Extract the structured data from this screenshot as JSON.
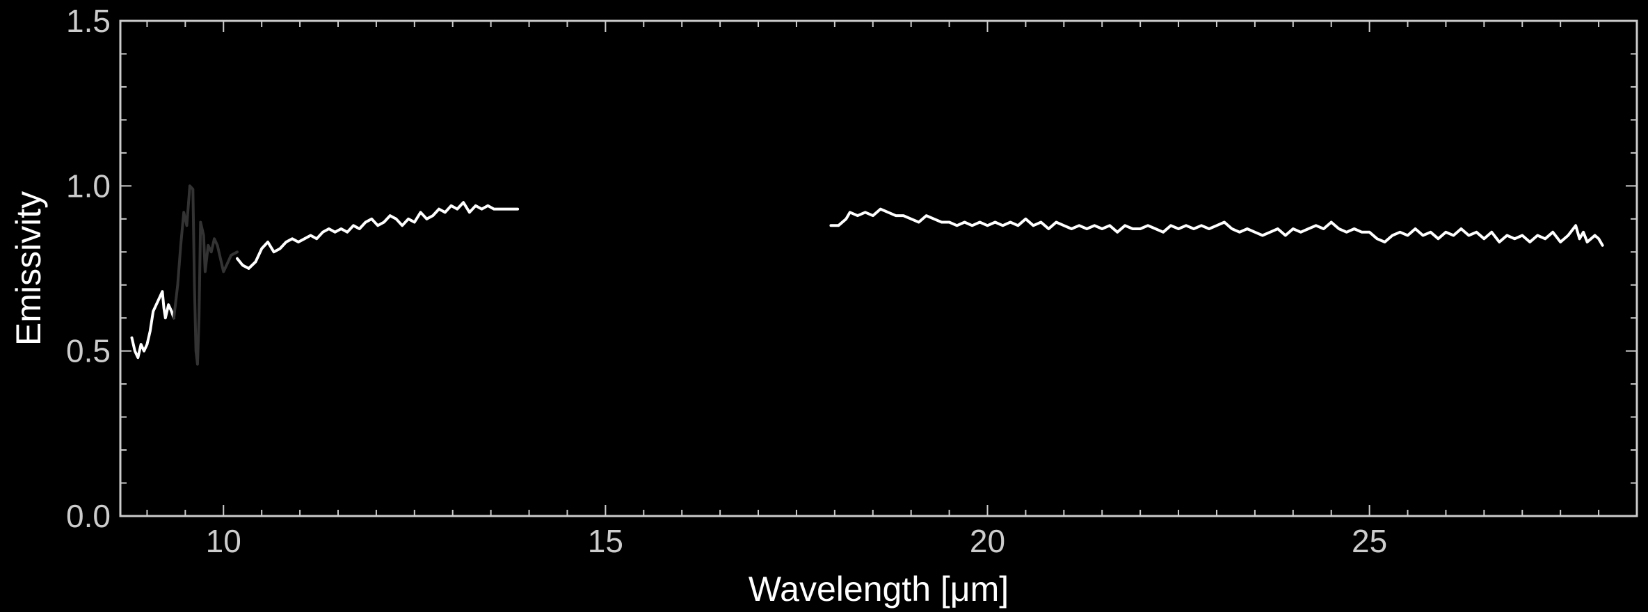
{
  "chart_data": {
    "type": "line",
    "xlabel": "Wavelength [μm]",
    "ylabel": "Emissivity",
    "xlim": [
      8.65,
      28.5
    ],
    "ylim": [
      0.0,
      1.5
    ],
    "x_ticks": [
      10,
      15,
      20,
      25
    ],
    "y_ticks": [
      0.0,
      0.5,
      1.0,
      1.5
    ],
    "x_tick_labels": [
      "10",
      "15",
      "20",
      "25"
    ],
    "y_tick_labels": [
      "0.0",
      "0.5",
      "1.0",
      "1.5"
    ],
    "x_minor_step": 0.5,
    "y_minor_step": 0.1,
    "grid": false,
    "colors": {
      "background": "#000000",
      "axes": "#cccccc",
      "primary": "#ffffff",
      "secondary": "#333333"
    },
    "series": [
      {
        "color": "#ffffff",
        "points": [
          [
            8.8,
            0.54
          ],
          [
            8.84,
            0.5
          ],
          [
            8.88,
            0.48
          ],
          [
            8.92,
            0.52
          ],
          [
            8.96,
            0.5
          ],
          [
            9.0,
            0.52
          ],
          [
            9.04,
            0.56
          ],
          [
            9.08,
            0.62
          ],
          [
            9.12,
            0.64
          ],
          [
            9.16,
            0.66
          ],
          [
            9.2,
            0.68
          ],
          [
            9.22,
            0.63
          ],
          [
            9.24,
            0.6
          ],
          [
            9.28,
            0.64
          ],
          [
            9.32,
            0.62
          ],
          [
            9.35,
            0.6
          ]
        ]
      },
      {
        "color": "#333333",
        "points": [
          [
            9.35,
            0.6
          ],
          [
            9.4,
            0.7
          ],
          [
            9.44,
            0.82
          ],
          [
            9.48,
            0.92
          ],
          [
            9.52,
            0.88
          ],
          [
            9.56,
            1.0
          ],
          [
            9.6,
            0.99
          ],
          [
            9.62,
            0.7
          ],
          [
            9.64,
            0.5
          ],
          [
            9.66,
            0.46
          ],
          [
            9.68,
            0.6
          ],
          [
            9.7,
            0.89
          ],
          [
            9.74,
            0.85
          ],
          [
            9.76,
            0.74
          ],
          [
            9.8,
            0.82
          ],
          [
            9.84,
            0.8
          ],
          [
            9.88,
            0.84
          ],
          [
            9.92,
            0.82
          ],
          [
            9.96,
            0.78
          ],
          [
            10.0,
            0.74
          ],
          [
            10.04,
            0.76
          ],
          [
            10.1,
            0.79
          ],
          [
            10.18,
            0.8
          ]
        ]
      },
      {
        "color": "#ffffff",
        "points": [
          [
            10.18,
            0.78
          ],
          [
            10.25,
            0.76
          ],
          [
            10.33,
            0.75
          ],
          [
            10.42,
            0.77
          ],
          [
            10.5,
            0.81
          ],
          [
            10.58,
            0.83
          ],
          [
            10.66,
            0.8
          ],
          [
            10.74,
            0.81
          ],
          [
            10.82,
            0.83
          ],
          [
            10.9,
            0.84
          ],
          [
            10.98,
            0.83
          ],
          [
            11.06,
            0.84
          ],
          [
            11.14,
            0.85
          ],
          [
            11.22,
            0.84
          ],
          [
            11.3,
            0.86
          ],
          [
            11.38,
            0.87
          ],
          [
            11.46,
            0.86
          ],
          [
            11.54,
            0.87
          ],
          [
            11.62,
            0.86
          ],
          [
            11.7,
            0.88
          ],
          [
            11.78,
            0.87
          ],
          [
            11.86,
            0.89
          ],
          [
            11.94,
            0.9
          ],
          [
            12.02,
            0.88
          ],
          [
            12.1,
            0.89
          ],
          [
            12.18,
            0.91
          ],
          [
            12.26,
            0.9
          ],
          [
            12.34,
            0.88
          ],
          [
            12.42,
            0.9
          ],
          [
            12.5,
            0.89
          ],
          [
            12.58,
            0.92
          ],
          [
            12.66,
            0.9
          ],
          [
            12.74,
            0.91
          ],
          [
            12.82,
            0.93
          ],
          [
            12.9,
            0.92
          ],
          [
            12.98,
            0.94
          ],
          [
            13.06,
            0.93
          ],
          [
            13.14,
            0.95
          ],
          [
            13.22,
            0.92
          ],
          [
            13.3,
            0.94
          ],
          [
            13.38,
            0.93
          ],
          [
            13.46,
            0.94
          ],
          [
            13.54,
            0.93
          ],
          [
            13.62,
            0.93
          ],
          [
            13.72,
            0.93
          ],
          [
            13.85,
            0.93
          ]
        ]
      },
      {
        "color": "#ffffff",
        "points": [
          [
            17.95,
            0.88
          ],
          [
            18.05,
            0.88
          ],
          [
            18.15,
            0.9
          ],
          [
            18.2,
            0.92
          ],
          [
            18.3,
            0.91
          ],
          [
            18.4,
            0.92
          ],
          [
            18.5,
            0.91
          ],
          [
            18.6,
            0.93
          ],
          [
            18.7,
            0.92
          ],
          [
            18.8,
            0.91
          ],
          [
            18.9,
            0.91
          ],
          [
            19.0,
            0.9
          ],
          [
            19.1,
            0.89
          ],
          [
            19.2,
            0.91
          ],
          [
            19.3,
            0.9
          ],
          [
            19.4,
            0.89
          ],
          [
            19.5,
            0.89
          ],
          [
            19.6,
            0.88
          ],
          [
            19.7,
            0.89
          ],
          [
            19.8,
            0.88
          ],
          [
            19.9,
            0.89
          ],
          [
            20.0,
            0.88
          ],
          [
            20.1,
            0.89
          ],
          [
            20.2,
            0.88
          ],
          [
            20.3,
            0.89
          ],
          [
            20.4,
            0.88
          ],
          [
            20.5,
            0.9
          ],
          [
            20.6,
            0.88
          ],
          [
            20.7,
            0.89
          ],
          [
            20.8,
            0.87
          ],
          [
            20.9,
            0.89
          ],
          [
            21.0,
            0.88
          ],
          [
            21.1,
            0.87
          ],
          [
            21.2,
            0.88
          ],
          [
            21.3,
            0.87
          ],
          [
            21.4,
            0.88
          ],
          [
            21.5,
            0.87
          ],
          [
            21.6,
            0.88
          ],
          [
            21.7,
            0.86
          ],
          [
            21.8,
            0.88
          ],
          [
            21.9,
            0.87
          ],
          [
            22.0,
            0.87
          ],
          [
            22.1,
            0.88
          ],
          [
            22.2,
            0.87
          ],
          [
            22.3,
            0.86
          ],
          [
            22.4,
            0.88
          ],
          [
            22.5,
            0.87
          ],
          [
            22.6,
            0.88
          ],
          [
            22.7,
            0.87
          ],
          [
            22.8,
            0.88
          ],
          [
            22.9,
            0.87
          ],
          [
            23.0,
            0.88
          ],
          [
            23.1,
            0.89
          ],
          [
            23.2,
            0.87
          ],
          [
            23.3,
            0.86
          ],
          [
            23.4,
            0.87
          ],
          [
            23.5,
            0.86
          ],
          [
            23.6,
            0.85
          ],
          [
            23.7,
            0.86
          ],
          [
            23.8,
            0.87
          ],
          [
            23.9,
            0.85
          ],
          [
            24.0,
            0.87
          ],
          [
            24.1,
            0.86
          ],
          [
            24.2,
            0.87
          ],
          [
            24.3,
            0.88
          ],
          [
            24.4,
            0.87
          ],
          [
            24.5,
            0.89
          ],
          [
            24.6,
            0.87
          ],
          [
            24.7,
            0.86
          ],
          [
            24.8,
            0.87
          ],
          [
            24.9,
            0.86
          ],
          [
            25.0,
            0.86
          ],
          [
            25.1,
            0.84
          ],
          [
            25.2,
            0.83
          ],
          [
            25.3,
            0.85
          ],
          [
            25.4,
            0.86
          ],
          [
            25.5,
            0.85
          ],
          [
            25.6,
            0.87
          ],
          [
            25.7,
            0.85
          ],
          [
            25.8,
            0.86
          ],
          [
            25.9,
            0.84
          ],
          [
            26.0,
            0.86
          ],
          [
            26.1,
            0.85
          ],
          [
            26.2,
            0.87
          ],
          [
            26.3,
            0.85
          ],
          [
            26.4,
            0.86
          ],
          [
            26.5,
            0.84
          ],
          [
            26.6,
            0.86
          ],
          [
            26.7,
            0.83
          ],
          [
            26.8,
            0.85
          ],
          [
            26.9,
            0.84
          ],
          [
            27.0,
            0.85
          ],
          [
            27.1,
            0.83
          ],
          [
            27.2,
            0.85
          ],
          [
            27.3,
            0.84
          ],
          [
            27.4,
            0.86
          ],
          [
            27.5,
            0.83
          ],
          [
            27.6,
            0.85
          ],
          [
            27.7,
            0.88
          ],
          [
            27.75,
            0.84
          ],
          [
            27.8,
            0.86
          ],
          [
            27.85,
            0.83
          ],
          [
            27.9,
            0.84
          ],
          [
            27.95,
            0.85
          ],
          [
            28.0,
            0.84
          ],
          [
            28.05,
            0.82
          ]
        ]
      }
    ]
  }
}
